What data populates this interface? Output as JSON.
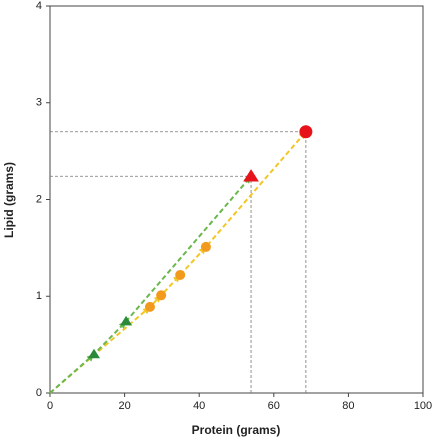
{
  "chart_data": {
    "type": "line",
    "x_label": "Protein (grams)",
    "y_label": "Lipid (grams)",
    "xlim": [
      0,
      100
    ],
    "xticks": [
      0,
      20,
      40,
      60,
      80,
      100
    ],
    "ylim": [
      0,
      4
    ],
    "yticks": [
      0,
      1,
      2,
      3,
      4
    ],
    "guides": true,
    "series": [
      {
        "color": "#f2c624",
        "marker": "circle",
        "x": [
          0,
          26.8,
          29.8,
          34.9,
          41.8,
          68.6
        ],
        "values": [
          0,
          0.89,
          1.01,
          1.22,
          1.51,
          2.7
        ],
        "point_colors": [
          null,
          "#f29a1e",
          "#f29a1e",
          "#f29a1e",
          "#f29a1e",
          "#e8131a"
        ]
      },
      {
        "color": "#6ab74c",
        "marker": "triangle",
        "x": [
          0,
          11.8,
          20.4,
          53.9
        ],
        "values": [
          0,
          0.4,
          0.74,
          2.24
        ],
        "point_colors": [
          null,
          "#2a8a3a",
          "#2a8a3a",
          "#e8131a"
        ]
      }
    ]
  }
}
